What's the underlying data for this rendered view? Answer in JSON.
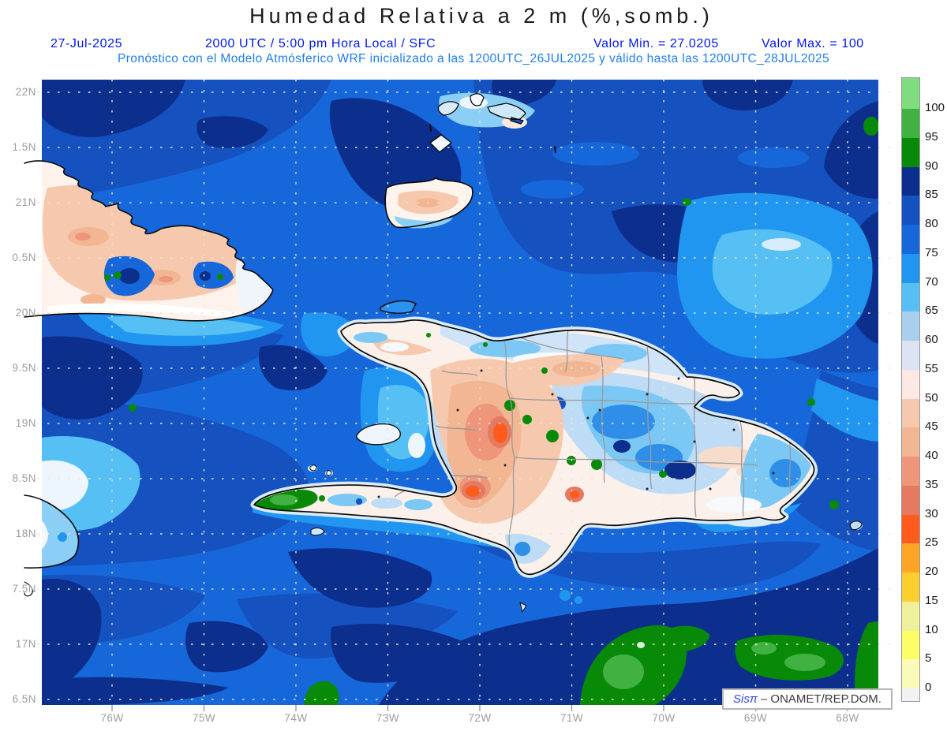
{
  "title": "Humedad Relativa a 2 m (%,somb.)",
  "header": {
    "date": "27-Jul-2025",
    "time": "2000 UTC / 5:00 pm Hora Local / SFC",
    "min_label": "Valor Min. = 27.0205",
    "max_label": "Valor Max. = 100",
    "forecast_line": "Pronóstico con el Modelo Atmósferico WRF inicializado a las 1200UTC_26JUL2025 y válido hasta las  1200UTC_28JUL2025"
  },
  "axes": {
    "lat_labels": [
      "22N",
      "1.5N",
      "21N",
      "0.5N",
      "20N",
      "9.5N",
      "19N",
      "8.5N",
      "18N",
      "7.5N",
      "17N",
      "6.5N"
    ],
    "lon_labels": [
      "76W",
      "75W",
      "74W",
      "73W",
      "72W",
      "71W",
      "70W",
      "69W",
      "68W"
    ]
  },
  "colorbar": {
    "tick_labels": [
      "100",
      "95",
      "90",
      "85",
      "80",
      "75",
      "70",
      "65",
      "60",
      "55",
      "50",
      "45",
      "40",
      "35",
      "30",
      "25",
      "20",
      "15",
      "10",
      "5",
      "0"
    ],
    "colors_top_to_bottom": [
      "#7fdc7f",
      "#41b141",
      "#088a08",
      "#0c2e8c",
      "#1551bf",
      "#1667da",
      "#2196f0",
      "#56c0f5",
      "#aacfee",
      "#dce3f5",
      "#fde9e4",
      "#f6c9ae",
      "#f2b693",
      "#ee957a",
      "#e57a62",
      "#fe5b1d",
      "#fea526",
      "#fdcf2e",
      "#f0f09c",
      "#fdfd67",
      "#fbfbb9",
      "#f2f2f2"
    ]
  },
  "branding": {
    "logo": "Sisπ",
    "credit": "– ONAMET/REP.DOM."
  },
  "chart_data": {
    "type": "heatmap",
    "title": "Humedad Relativa a 2 m (%,somb.)",
    "units": "%",
    "value_min": 27.0205,
    "value_max": 100,
    "colorbar_levels": [
      0,
      5,
      10,
      15,
      20,
      25,
      30,
      35,
      40,
      45,
      50,
      55,
      60,
      65,
      70,
      75,
      80,
      85,
      90,
      95,
      100
    ],
    "lat_ticks": [
      "22N",
      "21.5N",
      "21N",
      "20.5N",
      "20N",
      "19.5N",
      "19N",
      "18.5N",
      "18N",
      "17.5N",
      "17N",
      "16.5N"
    ],
    "lon_ticks": [
      "76W",
      "75W",
      "74W",
      "73W",
      "72W",
      "71W",
      "70W",
      "69W",
      "68W"
    ],
    "region": "Hispaniola / Eastern Cuba / Bahamas"
  }
}
